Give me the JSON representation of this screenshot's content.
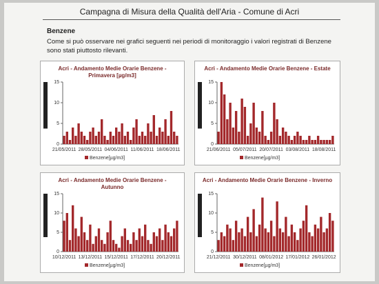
{
  "header": {
    "title": "Campagna di Misura della Qualità dell'Aria - Comune di Acri"
  },
  "section": {
    "heading": "Benzene",
    "lines": [
      "Come si può osservare nei grafici seguenti nei periodi di monitoraggio i valori registrati di Benzene",
      "sono stati piuttosto rilevanti."
    ]
  },
  "chart_data": [
    {
      "type": "bar",
      "title": "Acri - Andamento Medie Orarie Benzene - Primavera [µg/m3]",
      "legend": "Benzene[µg/m3]",
      "color": "#a3282b",
      "categories": [
        "21/05/2011",
        null,
        null,
        null,
        null,
        null,
        null,
        null,
        null,
        "28/05/2011",
        null,
        null,
        null,
        null,
        null,
        null,
        null,
        null,
        "04/06/2011",
        null,
        null,
        null,
        null,
        null,
        null,
        null,
        null,
        "11/06/2011",
        null,
        null,
        null,
        null,
        null,
        null,
        null,
        null,
        "18/06/2011",
        null,
        null,
        null
      ],
      "values": [
        2,
        3,
        1,
        4,
        2,
        5,
        3,
        2,
        1,
        3,
        4,
        2,
        3,
        6,
        2,
        1,
        3,
        2,
        4,
        3,
        5,
        2,
        3,
        1,
        4,
        6,
        2,
        3,
        2,
        5,
        3,
        7,
        2,
        4,
        3,
        6,
        2,
        8,
        3,
        2
      ],
      "ylim": [
        0,
        15
      ],
      "yticks": [
        0,
        5,
        10,
        15
      ]
    },
    {
      "type": "bar",
      "title": "Acri - Andamento Medie Orarie Benzene - Estate",
      "legend": "Benzene[µg/m3]",
      "color": "#a3282b",
      "categories": [
        "21/06/2011",
        null,
        null,
        null,
        null,
        null,
        null,
        null,
        null,
        "05/07/2011",
        null,
        null,
        null,
        null,
        null,
        null,
        null,
        null,
        "20/07/2011",
        null,
        null,
        null,
        null,
        null,
        null,
        null,
        null,
        "03/08/2011",
        null,
        null,
        null,
        null,
        null,
        null,
        null,
        null,
        "18/08/2011",
        null,
        null,
        null
      ],
      "values": [
        3,
        15,
        12,
        6,
        10,
        4,
        8,
        3,
        11,
        9,
        2,
        5,
        10,
        4,
        3,
        8,
        2,
        1,
        3,
        10,
        6,
        2,
        4,
        3,
        2,
        1,
        2,
        3,
        2,
        1,
        1,
        2,
        1,
        1,
        2,
        1,
        1,
        1,
        1,
        2
      ],
      "ylim": [
        0,
        15
      ],
      "yticks": [
        0,
        5,
        10,
        15
      ]
    },
    {
      "type": "bar",
      "title": "Acri - Andamento Medie Orarie Benzene - Autunno",
      "legend": "Benzene[µg/m3]",
      "color": "#a3282b",
      "categories": [
        "10/12/2011",
        null,
        null,
        null,
        null,
        null,
        null,
        null,
        null,
        "13/12/2011",
        null,
        null,
        null,
        null,
        null,
        null,
        null,
        null,
        "15/12/2011",
        null,
        null,
        null,
        null,
        null,
        null,
        null,
        null,
        "17/12/2011",
        null,
        null,
        null,
        null,
        null,
        null,
        null,
        null,
        "20/12/2011",
        null,
        null,
        null
      ],
      "values": [
        8,
        10,
        3,
        12,
        6,
        4,
        9,
        5,
        3,
        7,
        2,
        4,
        6,
        3,
        2,
        5,
        8,
        3,
        2,
        1,
        4,
        6,
        3,
        2,
        5,
        3,
        6,
        4,
        7,
        3,
        2,
        5,
        4,
        6,
        3,
        7,
        5,
        4,
        6,
        8
      ],
      "ylim": [
        0,
        15
      ],
      "yticks": [
        0,
        5,
        10,
        15
      ]
    },
    {
      "type": "bar",
      "title": "Acri - Andamento Medie Orarie Benzene - Inverno",
      "legend": "Benzene[µg/m3]",
      "color": "#a3282b",
      "categories": [
        "21/12/2011",
        null,
        null,
        null,
        null,
        null,
        null,
        null,
        null,
        "30/12/2011",
        null,
        null,
        null,
        null,
        null,
        null,
        null,
        null,
        "08/01/2012",
        null,
        null,
        null,
        null,
        null,
        null,
        null,
        null,
        "17/01/2012",
        null,
        null,
        null,
        null,
        null,
        null,
        null,
        null,
        "26/01/2012",
        null,
        null,
        null
      ],
      "values": [
        3,
        5,
        4,
        7,
        6,
        3,
        8,
        5,
        6,
        4,
        9,
        5,
        11,
        4,
        7,
        14,
        6,
        5,
        8,
        4,
        13,
        6,
        5,
        9,
        4,
        7,
        5,
        3,
        6,
        8,
        12,
        5,
        4,
        7,
        6,
        9,
        5,
        6,
        10,
        8
      ],
      "ylim": [
        0,
        15
      ],
      "yticks": [
        0,
        5,
        10,
        15
      ]
    }
  ]
}
